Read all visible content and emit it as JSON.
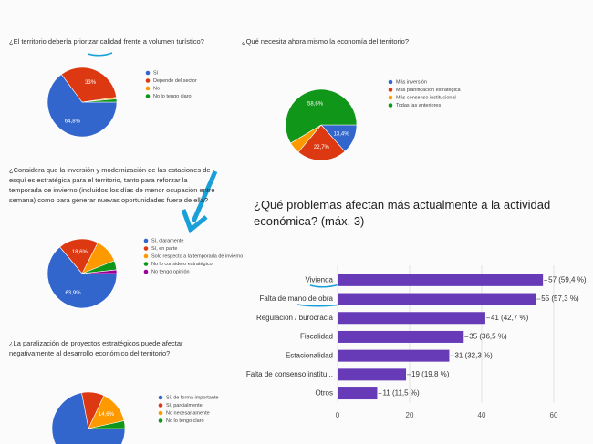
{
  "chart_data": [
    {
      "type": "pie",
      "title": "¿El territorio debería priorizar calidad frente a volumen turístico?",
      "categories": [
        "Sí",
        "Depende del sector",
        "No",
        "No lo tengo claro"
      ],
      "values": [
        64.8,
        33,
        0.7,
        1.5
      ],
      "value_labels": [
        "64,8%",
        "33%",
        null,
        null
      ],
      "colors": [
        "#3366cc",
        "#dc3912",
        "#ff9900",
        "#109618"
      ]
    },
    {
      "type": "pie",
      "title": "¿Qué necesita ahora mismo la economía del territorio?",
      "categories": [
        "Más inversión",
        "Más planificación estratégica",
        "Más consenso institucional",
        "Todas las anteriores"
      ],
      "values": [
        13.4,
        22.7,
        5.3,
        58.6
      ],
      "value_labels": [
        "13,4%",
        "22,7%",
        null,
        "58,6%"
      ],
      "colors": [
        "#3366cc",
        "#dc3912",
        "#ff9900",
        "#109618"
      ]
    },
    {
      "type": "pie",
      "title": "¿Considera que la inversión y modernización de las estaciones de esquí es estratégica para el territorio, tanto para reforzar la temporada de invierno (incluidos los días de menor ocupación entre semana) como para generar nuevas oportunidades fuera de ella?",
      "categories": [
        "Sí, claramente",
        "Sí, en parte",
        "Solo respecto a la temporada de invierno",
        "No lo considero estratégico",
        "No tengo opinión"
      ],
      "values": [
        63.9,
        18.6,
        11.5,
        4.3,
        1.7
      ],
      "value_labels": [
        "63,9%",
        "18,6%",
        null,
        null,
        null
      ],
      "colors": [
        "#3366cc",
        "#dc3912",
        "#ff9900",
        "#109618",
        "#990099"
      ]
    },
    {
      "type": "pie",
      "title": "¿La paralización de proyectos estratégicos puede afectar negativamente al desarrollo económico del territorio?",
      "categories": [
        "Sí, de forma importante",
        "Sí, parcialmente",
        "No necesariamente",
        "No lo tengo claro"
      ],
      "values": [
        72,
        10,
        14.6,
        3.4
      ],
      "value_labels": [
        null,
        null,
        "14,6%",
        null
      ],
      "colors": [
        "#3366cc",
        "#dc3912",
        "#ff9900",
        "#109618"
      ]
    },
    {
      "type": "hbar",
      "title": "¿Qué problemas afectan más actualmente a la actividad económica? (máx. 3)",
      "categories": [
        "Vivienda",
        "Falta de mano de obra",
        "Regulación / burocracia",
        "Fiscalidad",
        "Estacionalidad",
        "Falta de consenso institu...",
        "Otros"
      ],
      "values": [
        57,
        55,
        41,
        35,
        31,
        19,
        11
      ],
      "value_labels": [
        "57 (59,4 %)",
        "55 (57,3 %)",
        "41 (42,7 %)",
        "35 (36,5 %)",
        "31 (32,3 %)",
        "19 (19,8 %)",
        "11 (11,5 %)"
      ],
      "color": "#673ab7",
      "xlim": [
        0,
        65
      ],
      "xticks": [
        0,
        20,
        40,
        60
      ],
      "grid": true
    }
  ]
}
